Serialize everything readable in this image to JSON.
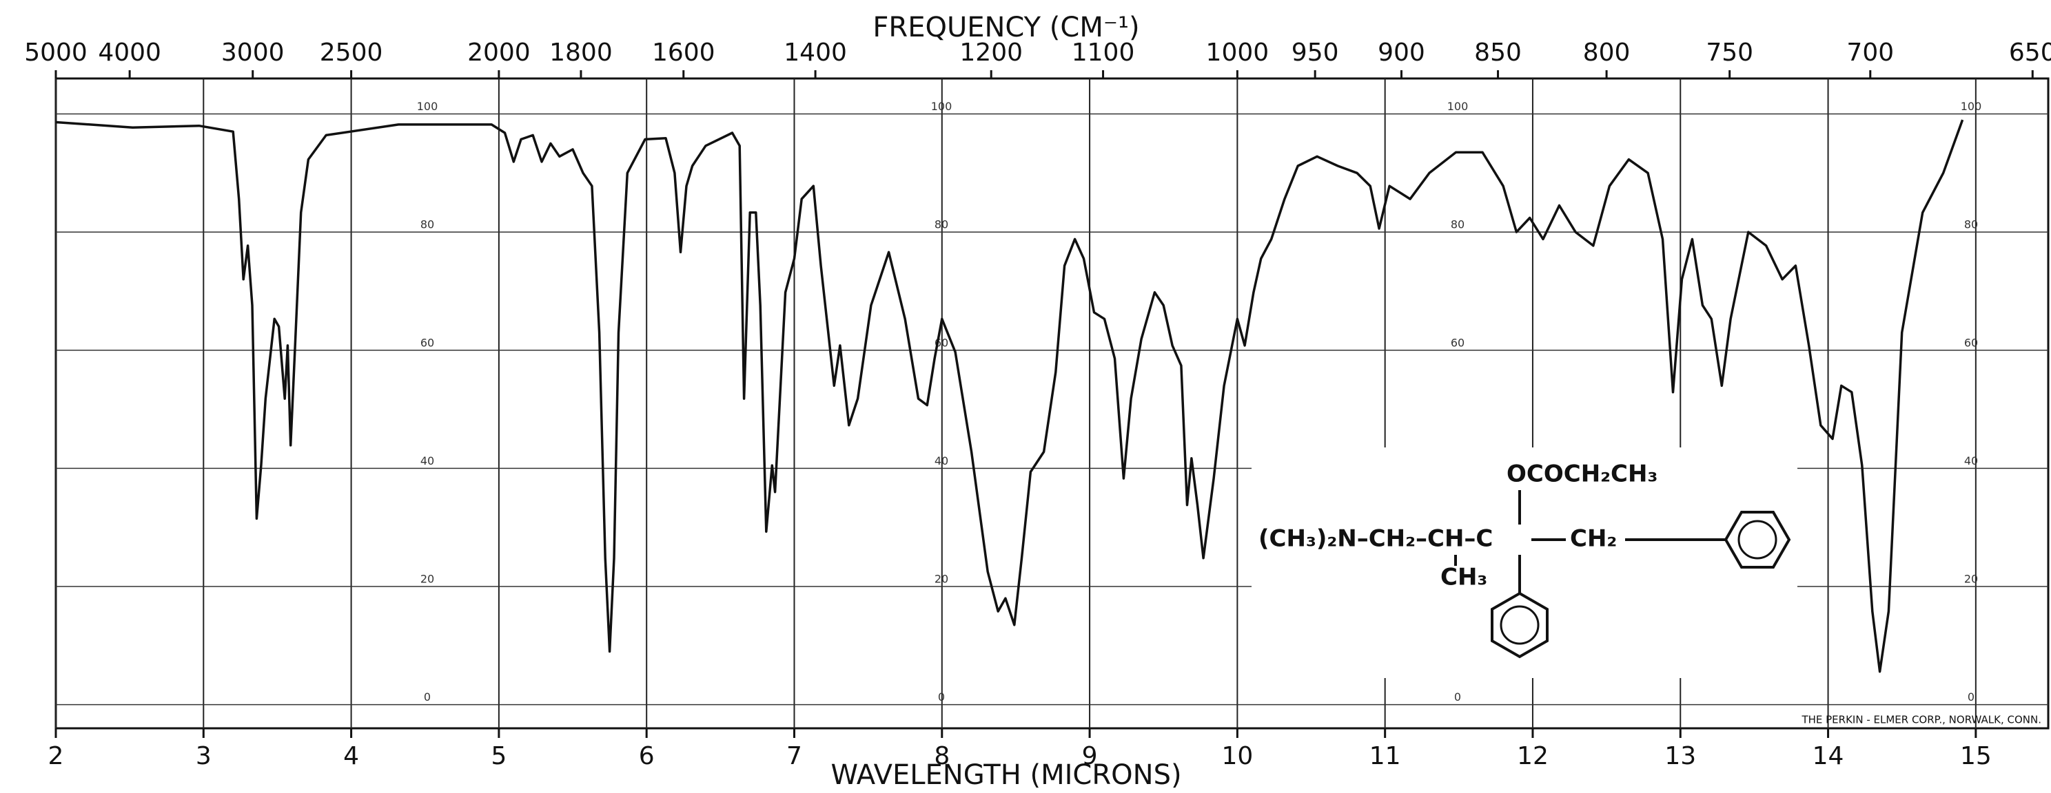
{
  "chart_data": {
    "type": "line",
    "title": "FREQUENCY (CM⁻¹)",
    "x_label": "WAVELENGTH (MICRONS)",
    "footer": "THE PERKIN - ELMER CORP., NORWALK, CONN.",
    "xlim": [
      2,
      15.5
    ],
    "xticks": [
      2,
      3,
      4,
      5,
      6,
      7,
      8,
      9,
      10,
      11,
      12,
      13,
      14,
      15
    ],
    "ylim": [
      -4,
      106
    ],
    "yticks": [
      0,
      20,
      40,
      60,
      80,
      100
    ],
    "x2ticks": [
      5000,
      4000,
      3000,
      2500,
      2000,
      1800,
      1600,
      1400,
      1200,
      1100,
      1000,
      950,
      900,
      850,
      800,
      750,
      700,
      650
    ],
    "grid": true,
    "structure": {
      "ester": "OCOCH₂CH₃",
      "chain": "(CH₃)₂N–CH₂–CH–C",
      "tail": "CH₂",
      "methyl": "CH₃"
    },
    "series": [
      {
        "color": "#111111",
        "x": [
          2.0,
          2.52,
          2.97,
          3.2,
          3.24,
          3.27,
          3.3,
          3.33,
          3.36,
          3.39,
          3.42,
          3.48,
          3.51,
          3.55,
          3.57,
          3.59,
          3.62,
          3.66,
          3.71,
          3.83,
          4.32,
          4.95,
          5.04,
          5.1,
          5.15,
          5.23,
          5.29,
          5.35,
          5.41,
          5.5,
          5.57,
          5.63,
          5.68,
          5.72,
          5.75,
          5.78,
          5.81,
          5.87,
          5.99,
          6.13,
          6.19,
          6.23,
          6.27,
          6.31,
          6.4,
          6.58,
          6.63,
          6.66,
          6.7,
          6.74,
          6.77,
          6.81,
          6.85,
          6.87,
          6.94,
          7.0,
          7.05,
          7.13,
          7.18,
          7.23,
          7.27,
          7.31,
          7.37,
          7.43,
          7.52,
          7.64,
          7.75,
          7.84,
          7.9,
          7.95,
          8.0,
          8.09,
          8.2,
          8.31,
          8.38,
          8.43,
          8.49,
          8.54,
          8.6,
          8.69,
          8.77,
          8.83,
          8.9,
          8.96,
          9.03,
          9.1,
          9.17,
          9.23,
          9.28,
          9.35,
          9.44,
          9.5,
          9.56,
          9.62,
          9.66,
          9.69,
          9.73,
          9.77,
          9.84,
          9.91,
          10.0,
          10.05,
          10.11,
          10.16,
          10.23,
          10.32,
          10.41,
          10.54,
          10.68,
          10.81,
          10.9,
          10.96,
          11.03,
          11.17,
          11.3,
          11.48,
          11.66,
          11.8,
          11.89,
          11.98,
          12.07,
          12.18,
          12.29,
          12.41,
          12.52,
          12.65,
          12.78,
          12.88,
          12.95,
          13.01,
          13.08,
          13.15,
          13.21,
          13.28,
          13.34,
          13.46,
          13.58,
          13.69,
          13.78,
          13.87,
          13.95,
          14.03,
          14.09,
          14.16,
          14.23,
          14.3,
          14.35,
          14.41,
          14.5,
          14.64,
          14.78,
          14.91
        ],
        "values": [
          98.6,
          97.7,
          98,
          97,
          85.6,
          72,
          77.7,
          67.6,
          31.5,
          40.5,
          51.8,
          65.3,
          64,
          51.8,
          60.8,
          43.9,
          60.8,
          83.3,
          92.3,
          96.4,
          98.2,
          98.2,
          96.8,
          91.9,
          95.7,
          96.4,
          91.9,
          95,
          92.8,
          94,
          90,
          87.8,
          63,
          24.8,
          9,
          24.8,
          63,
          90,
          95.7,
          95.9,
          90,
          76.6,
          87.8,
          91.2,
          94.6,
          96.8,
          94.6,
          51.8,
          83.3,
          83.3,
          67.6,
          29.3,
          40.5,
          36,
          69.8,
          75.5,
          85.6,
          87.8,
          74.3,
          63,
          54,
          60.8,
          47.3,
          51.8,
          67.6,
          76.6,
          65.3,
          51.8,
          50.7,
          58.6,
          65.3,
          59.7,
          42.8,
          22.5,
          15.8,
          18,
          13.5,
          24.8,
          39.4,
          42.8,
          56.3,
          74.3,
          78.8,
          75.5,
          66.4,
          65.3,
          58.6,
          38.3,
          51.8,
          61.9,
          69.8,
          67.6,
          60.8,
          57.4,
          33.8,
          41.7,
          33.8,
          24.8,
          38.3,
          54,
          65.3,
          60.8,
          69.8,
          75.5,
          78.8,
          85.6,
          91.2,
          92.8,
          91.2,
          90,
          87.8,
          80.6,
          87.8,
          85.6,
          90,
          93.5,
          93.5,
          87.8,
          80,
          82.4,
          78.8,
          84.5,
          80,
          77.7,
          87.8,
          92.3,
          90,
          78.8,
          52.9,
          72,
          78.8,
          67.6,
          65.3,
          54,
          65.3,
          80,
          77.7,
          72,
          74.3,
          60.8,
          47.3,
          45,
          54,
          52.9,
          40.5,
          15.8,
          5.6,
          15.8,
          63,
          83.3,
          90,
          99
        ]
      }
    ]
  }
}
